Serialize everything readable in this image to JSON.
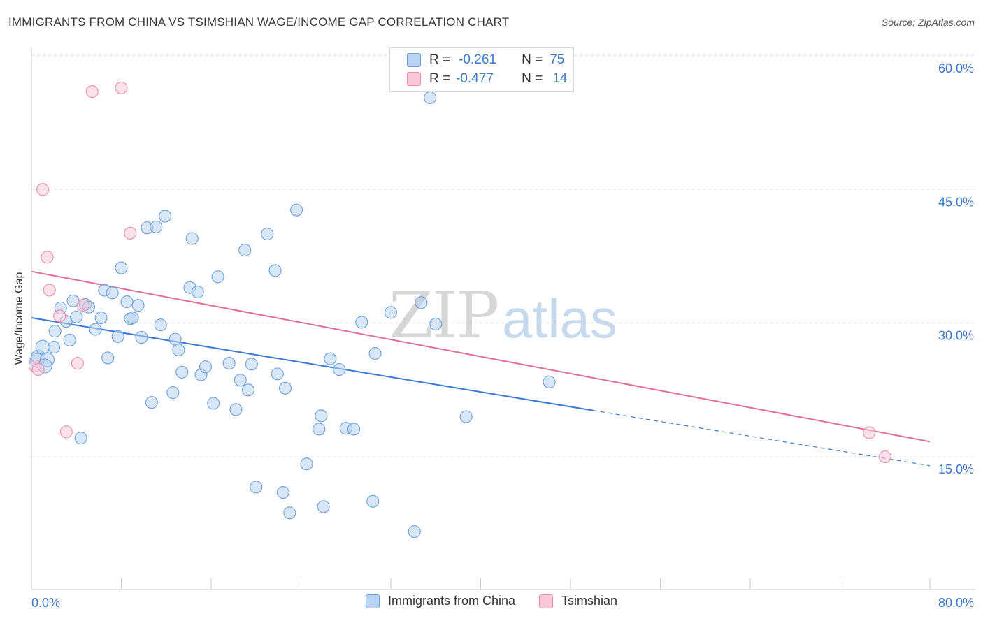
{
  "title": "IMMIGRANTS FROM CHINA VS TSIMSHIAN WAGE/INCOME GAP CORRELATION CHART",
  "source": "Source: ZipAtlas.com",
  "watermark": {
    "zip": "ZIP",
    "atlas": "atlas"
  },
  "legend": {
    "rows": [
      {
        "r_label": "R =",
        "r_value": "-0.261",
        "n_label": "N =",
        "n_value": "75"
      },
      {
        "r_label": "R =",
        "r_value": "-0.477",
        "n_label": "N =",
        "n_value": "14"
      }
    ]
  },
  "colors": {
    "china_fill": "#b8d3f3",
    "china_stroke": "#6d9fdc",
    "china_line": "#3b79d4",
    "tsim_fill": "#f8c8d8",
    "tsim_stroke": "#e88fab",
    "tsim_line": "#e0709a",
    "tick_text": "#3d78c9",
    "grid": "#e3e3e3"
  },
  "chart_data": {
    "type": "scatter",
    "title": "IMMIGRANTS FROM CHINA VS TSIMSHIAN WAGE/INCOME GAP CORRELATION CHART",
    "xlabel": "",
    "ylabel": "Wage/Income Gap",
    "xlim": [
      0,
      80
    ],
    "ylim": [
      0,
      62.5
    ],
    "x_tick_labels": [
      "0.0%",
      "80.0%"
    ],
    "y_ticks": [
      15,
      30,
      45,
      60
    ],
    "y_tick_labels": [
      "15.0%",
      "30.0%",
      "45.0%",
      "60.0%"
    ],
    "grid": "horizontal dashed",
    "legend_position": "bottom-center",
    "series": [
      {
        "name": "Immigrants from China",
        "r": -0.261,
        "n": 75,
        "trend": {
          "x": [
            0,
            50
          ],
          "y": [
            30.6,
            20.2
          ],
          "dashed_extension_to": [
            80,
            14.0
          ]
        },
        "points": [
          [
            0.5,
            25.8
          ],
          [
            0.6,
            26.2
          ],
          [
            1.0,
            27.3
          ],
          [
            1.4,
            25.9
          ],
          [
            2.0,
            27.3
          ],
          [
            2.1,
            29.1
          ],
          [
            2.6,
            31.7
          ],
          [
            3.1,
            30.2
          ],
          [
            3.4,
            28.1
          ],
          [
            3.7,
            32.5
          ],
          [
            4.0,
            30.7
          ],
          [
            4.4,
            17.1
          ],
          [
            4.8,
            32.1
          ],
          [
            5.1,
            31.8
          ],
          [
            5.7,
            29.3
          ],
          [
            6.2,
            30.6
          ],
          [
            6.5,
            33.7
          ],
          [
            6.8,
            26.1
          ],
          [
            7.2,
            33.4
          ],
          [
            7.7,
            28.5
          ],
          [
            8.0,
            36.2
          ],
          [
            8.5,
            32.4
          ],
          [
            8.8,
            30.5
          ],
          [
            9.0,
            30.6
          ],
          [
            9.5,
            32.0
          ],
          [
            9.8,
            28.4
          ],
          [
            10.3,
            40.7
          ],
          [
            10.7,
            21.1
          ],
          [
            11.1,
            40.8
          ],
          [
            11.5,
            29.8
          ],
          [
            11.9,
            42.0
          ],
          [
            12.6,
            22.2
          ],
          [
            12.8,
            28.2
          ],
          [
            13.1,
            27.0
          ],
          [
            13.4,
            24.5
          ],
          [
            14.1,
            34.0
          ],
          [
            14.3,
            39.5
          ],
          [
            14.8,
            33.5
          ],
          [
            15.1,
            24.2
          ],
          [
            15.5,
            25.1
          ],
          [
            16.2,
            21.0
          ],
          [
            16.6,
            35.2
          ],
          [
            17.6,
            25.5
          ],
          [
            18.2,
            20.3
          ],
          [
            18.6,
            23.6
          ],
          [
            19.0,
            38.2
          ],
          [
            19.3,
            22.5
          ],
          [
            19.6,
            25.4
          ],
          [
            20.0,
            11.6
          ],
          [
            21.0,
            40.0
          ],
          [
            21.7,
            35.9
          ],
          [
            21.9,
            24.3
          ],
          [
            22.4,
            11.0
          ],
          [
            22.6,
            22.7
          ],
          [
            23.0,
            8.7
          ],
          [
            23.6,
            42.7
          ],
          [
            24.5,
            14.2
          ],
          [
            25.6,
            18.1
          ],
          [
            25.8,
            19.6
          ],
          [
            26.0,
            9.4
          ],
          [
            26.6,
            26.0
          ],
          [
            27.4,
            24.8
          ],
          [
            28.0,
            18.2
          ],
          [
            28.7,
            18.1
          ],
          [
            29.4,
            30.1
          ],
          [
            30.4,
            10.0
          ],
          [
            30.6,
            26.6
          ],
          [
            32.0,
            31.2
          ],
          [
            34.1,
            6.6
          ],
          [
            34.7,
            32.3
          ],
          [
            35.5,
            55.3
          ],
          [
            36.0,
            29.9
          ],
          [
            38.7,
            19.5
          ],
          [
            46.1,
            23.4
          ],
          [
            1.2,
            25.2
          ]
        ]
      },
      {
        "name": "Tsimshian",
        "r": -0.477,
        "n": 14,
        "trend": {
          "x": [
            0,
            80
          ],
          "y": [
            35.8,
            16.7
          ]
        },
        "points": [
          [
            0.3,
            25.2
          ],
          [
            0.6,
            24.8
          ],
          [
            1.0,
            45.0
          ],
          [
            1.4,
            37.4
          ],
          [
            1.6,
            33.7
          ],
          [
            2.5,
            30.8
          ],
          [
            3.1,
            17.8
          ],
          [
            4.1,
            25.5
          ],
          [
            4.6,
            32.0
          ],
          [
            5.4,
            56.0
          ],
          [
            8.0,
            56.4
          ],
          [
            8.8,
            40.1
          ],
          [
            74.6,
            17.7
          ],
          [
            76.0,
            15.0
          ]
        ]
      }
    ]
  },
  "bottom_legend": [
    "Immigrants from China",
    "Tsimshian"
  ],
  "axis_labels": {
    "x_min": "0.0%",
    "x_max": "80.0%"
  }
}
